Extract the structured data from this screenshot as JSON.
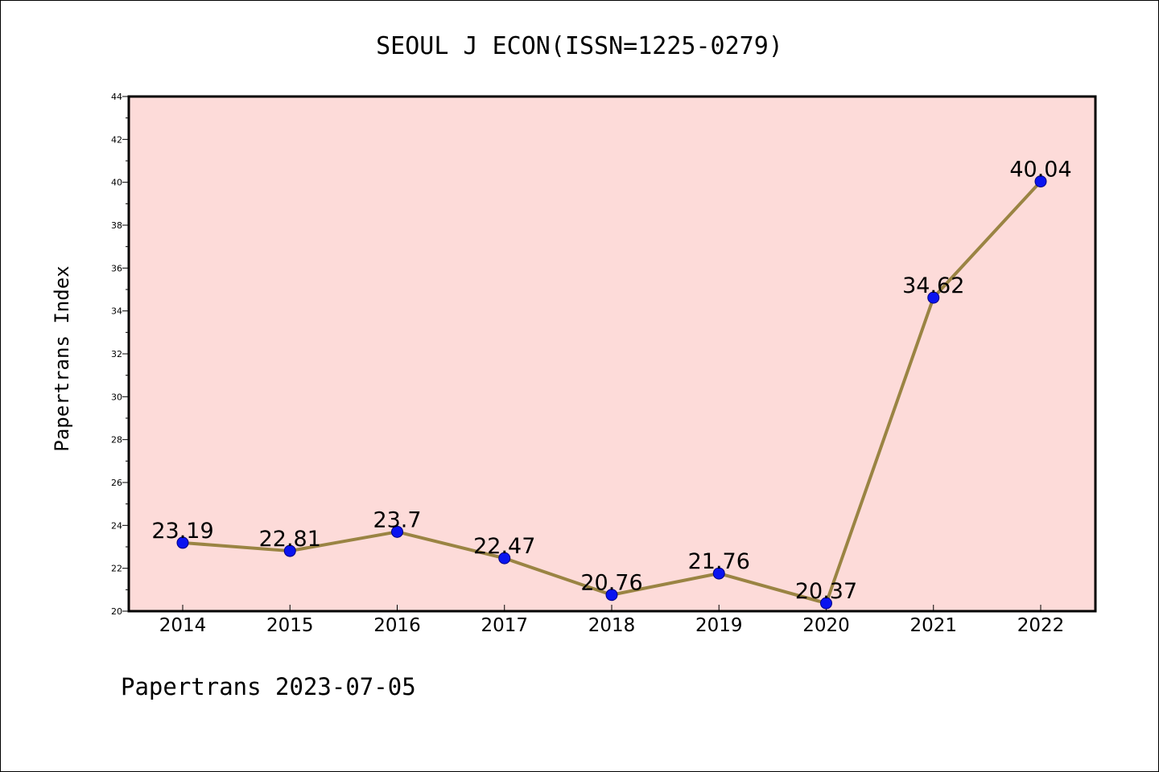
{
  "footer": "Papertrans 2023-07-05",
  "colors": {
    "plot_background": "#fddbd9",
    "line": "#9a8443",
    "marker": "#0a14f0",
    "marker_edge": "#000080",
    "axis": "#000000"
  },
  "chart_data": {
    "type": "line",
    "title": "SEOUL J ECON(ISSN=1225-0279)",
    "xlabel": "",
    "ylabel": "Papertrans Index",
    "categories": [
      "2014",
      "2015",
      "2016",
      "2017",
      "2018",
      "2019",
      "2020",
      "2021",
      "2022"
    ],
    "series": [
      {
        "values": [
          23.19,
          22.81,
          23.7,
          22.47,
          20.76,
          21.76,
          20.37,
          34.62,
          40.04
        ],
        "labels": [
          "23.19",
          "22.81",
          "23.7",
          "22.47",
          "20.76",
          "21.76",
          "20.37",
          "34.62",
          "40.04"
        ]
      }
    ],
    "ylim": [
      20,
      44
    ],
    "yticks": [
      "20",
      "22",
      "24",
      "26",
      "28",
      "30",
      "32",
      "34",
      "36",
      "38",
      "40",
      "42",
      "44"
    ],
    "grid": false,
    "legend": "none"
  }
}
